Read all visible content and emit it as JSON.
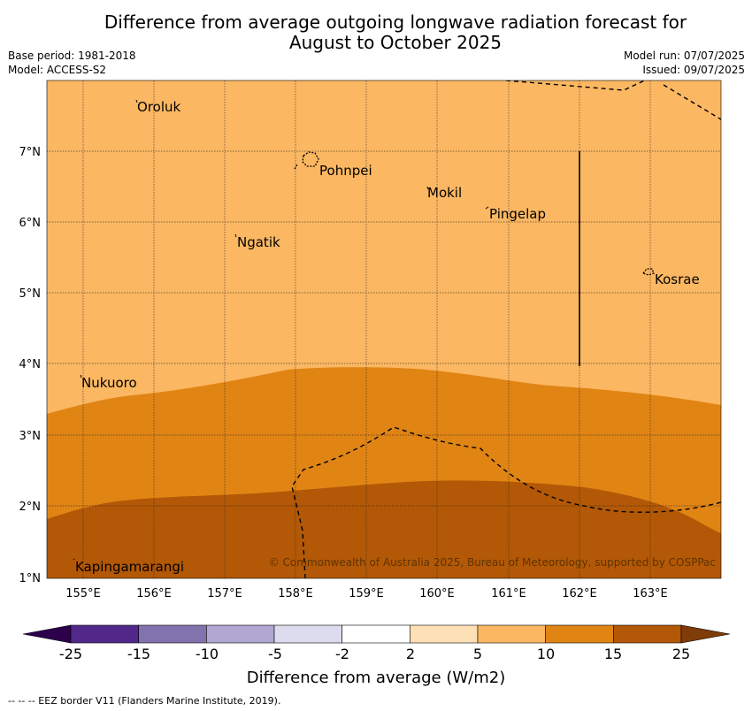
{
  "title_line1": "Difference from average outgoing longwave radiation forecast for",
  "title_line2": "August to October 2025",
  "base_period": "Base period: 1981-2018",
  "model": "Model: ACCESS-S2",
  "model_run": "Model run: 07/07/2025",
  "issued": "Issued: 09/07/2025",
  "copyright": "© Commonwealth of Australia 2025, Bureau of Meteorology, supported by COSPPac",
  "lon_ticks": [
    "155°E",
    "156°E",
    "157°E",
    "158°E",
    "159°E",
    "160°E",
    "161°E",
    "162°E",
    "163°E"
  ],
  "lat_ticks": [
    "7°N",
    "6°N",
    "5°N",
    "4°N",
    "3°N",
    "2°N",
    "1°N"
  ],
  "places": [
    {
      "name": "Oroluk",
      "lon": 155.75,
      "lat": 7.65
    },
    {
      "name": "Pohnpei",
      "lon": 158.3,
      "lat": 6.9
    },
    {
      "name": "Mokil",
      "lon": 159.8,
      "lat": 6.45
    },
    {
      "name": "Pingelap",
      "lon": 160.7,
      "lat": 6.2
    },
    {
      "name": "Ngatik",
      "lon": 157.15,
      "lat": 5.8
    },
    {
      "name": "Kosrae",
      "lon": 162.98,
      "lat": 5.33
    },
    {
      "name": "Nukuoro",
      "lon": 154.97,
      "lat": 3.85
    },
    {
      "name": "Kapingamarangi",
      "lon": 154.87,
      "lat": 1.25
    }
  ],
  "colorbar": {
    "labels": [
      "-25",
      "-15",
      "-10",
      "-5",
      "-2",
      "2",
      "5",
      "10",
      "15",
      "25"
    ],
    "colors": [
      "#52288a",
      "#8272ad",
      "#b0a8d2",
      "#dcdcee",
      "#ffffff",
      "#fee0b7",
      "#fbb762",
      "#e08414",
      "#b35806"
    ],
    "under_color": "#2d004b",
    "over_color": "#7f3b08",
    "label": "Difference from average (W/m2)"
  },
  "footer": "--  --  -- EEZ border V11 (Flanders Marine Institute, 2019)."
}
